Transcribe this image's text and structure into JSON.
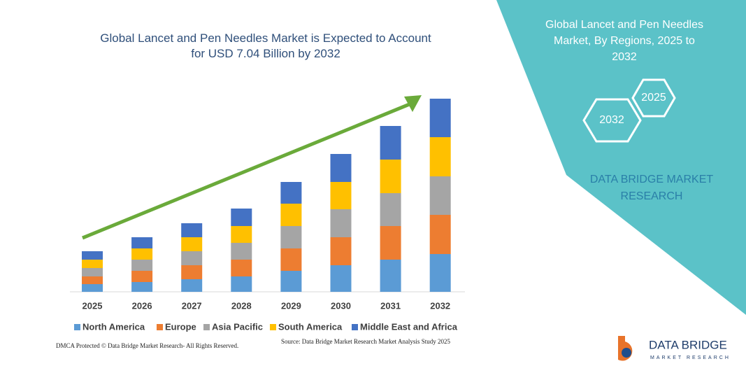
{
  "chart_data": {
    "type": "bar",
    "stacked": true,
    "title": "Global Lancet and Pen Needles Market is Expected to Account for USD 7.04 Billion by 2032",
    "categories": [
      "2025",
      "2026",
      "2027",
      "2028",
      "2029",
      "2030",
      "2031",
      "2032"
    ],
    "series": [
      {
        "name": "North America",
        "color": "#5b9bd5",
        "values": [
          11,
          14,
          18,
          22,
          30,
          38,
          46,
          54
        ]
      },
      {
        "name": "Europe",
        "color": "#ed7d31",
        "values": [
          11,
          16,
          20,
          24,
          32,
          40,
          48,
          56
        ]
      },
      {
        "name": "Asia Pacific",
        "color": "#a5a5a5",
        "values": [
          12,
          16,
          20,
          24,
          32,
          40,
          47,
          55
        ]
      },
      {
        "name": "South America",
        "color": "#ffc000",
        "values": [
          12,
          16,
          20,
          24,
          32,
          39,
          48,
          56
        ]
      },
      {
        "name": "Middle East and Africa",
        "color": "#4472c4",
        "values": [
          12,
          16,
          20,
          25,
          31,
          40,
          48,
          55
        ]
      }
    ]
  },
  "sidebar": {
    "title": "Global Lancet and Pen Needles Market, By Regions, 2025 to 2032",
    "hexagons": [
      "2025",
      "2032"
    ],
    "brand": "DATA BRIDGE MARKET RESEARCH"
  },
  "footer": {
    "dmca": "DMCA Protected © Data Bridge Market Research- All Rights Reserved.",
    "source": "Source: Data Bridge Market Research Market Analysis Study 2025"
  },
  "logo": {
    "name": "DATA BRIDGE",
    "tagline": "MARKET RESEARCH"
  }
}
